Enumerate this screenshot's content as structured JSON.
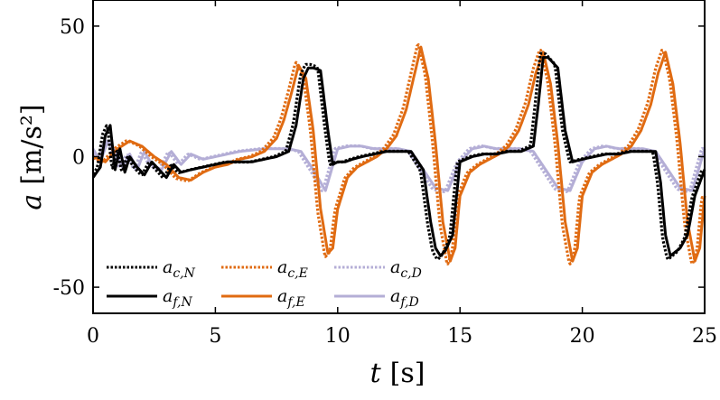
{
  "chart_data": {
    "type": "line",
    "xlabel_var": "t",
    "xlabel_unit": "[s]",
    "ylabel_var": "a",
    "ylabel_unit": "[m/s²]",
    "xlim": [
      0,
      25
    ],
    "ylim": [
      -60,
      60
    ],
    "xticks": [
      0,
      5,
      10,
      15,
      20,
      25
    ],
    "yticks": [
      -50,
      0,
      50
    ],
    "ytick_labels": [
      "-50",
      "0",
      "50"
    ],
    "colors": {
      "N": "#000000",
      "E": "#e06b12",
      "D": "#b4aed6"
    },
    "legend_position": "bottom-left",
    "series": [
      {
        "name": "a_c,N",
        "base": "a",
        "sub": "c,N",
        "axis": "N",
        "kind": "dotted"
      },
      {
        "name": "a_c,E",
        "base": "a",
        "sub": "c,E",
        "axis": "E",
        "kind": "dotted"
      },
      {
        "name": "a_c,D",
        "base": "a",
        "sub": "c,D",
        "axis": "D",
        "kind": "dotted"
      },
      {
        "name": "a_f,N",
        "base": "a",
        "sub": "f,N",
        "axis": "N",
        "kind": "solid"
      },
      {
        "name": "a_f,E",
        "base": "a",
        "sub": "f,E",
        "axis": "E",
        "kind": "solid"
      },
      {
        "name": "a_f,D",
        "base": "a",
        "sub": "f,D",
        "axis": "D",
        "kind": "solid"
      }
    ],
    "traces": {
      "E": {
        "t": [
          0,
          0.5,
          1.0,
          1.5,
          2.0,
          2.5,
          3.0,
          3.5,
          4.0,
          4.5,
          5.0,
          5.5,
          6.0,
          6.5,
          7.0,
          7.5,
          7.8,
          8.1,
          8.4,
          8.7,
          9.0,
          9.3,
          9.6,
          9.8,
          10.0,
          10.4,
          10.8,
          11.2,
          11.6,
          12.0,
          12.4,
          12.8,
          13.1,
          13.4,
          13.7,
          14.0,
          14.3,
          14.6,
          14.8,
          15.0,
          15.4,
          15.8,
          16.2,
          16.6,
          17.0,
          17.4,
          17.8,
          18.1,
          18.4,
          18.7,
          19.0,
          19.3,
          19.6,
          19.8,
          20.0,
          20.4,
          20.8,
          21.2,
          21.6,
          22.0,
          22.4,
          22.8,
          23.1,
          23.4,
          23.7,
          24.0,
          24.3,
          24.6,
          24.8,
          25.0
        ],
        "v": [
          0,
          -2,
          3,
          6,
          4,
          0,
          -3,
          -8,
          -9,
          -6,
          -4,
          -3,
          -1,
          0,
          2,
          7,
          14,
          24,
          35,
          30,
          10,
          -20,
          -37,
          -35,
          -20,
          -8,
          -4,
          -2,
          0,
          3,
          8,
          18,
          30,
          42,
          30,
          5,
          -25,
          -40,
          -35,
          -15,
          -6,
          -3,
          -1,
          1,
          4,
          10,
          20,
          32,
          40,
          28,
          5,
          -25,
          -40,
          -35,
          -15,
          -6,
          -3,
          -1,
          1,
          4,
          10,
          20,
          32,
          40,
          28,
          5,
          -25,
          -40,
          -35,
          -15
        ]
      },
      "N": {
        "t": [
          0,
          0.3,
          0.5,
          0.7,
          0.9,
          1.1,
          1.3,
          1.5,
          1.8,
          2.1,
          2.4,
          2.7,
          3.0,
          3.3,
          3.6,
          4.0,
          4.5,
          5.0,
          5.5,
          6.0,
          6.5,
          7.0,
          7.5,
          8.0,
          8.3,
          8.6,
          8.8,
          9.0,
          9.3,
          9.6,
          9.8,
          10.0,
          10.3,
          10.6,
          11.0,
          11.5,
          12.0,
          12.5,
          13.0,
          13.5,
          13.8,
          14.0,
          14.2,
          14.4,
          14.7,
          15.0,
          15.5,
          16.0,
          16.5,
          17.0,
          17.5,
          18.0,
          18.2,
          18.4,
          18.6,
          19.0,
          19.3,
          19.6,
          20.0,
          20.5,
          21.0,
          21.5,
          22.0,
          22.5,
          23.0,
          23.2,
          23.4,
          23.6,
          24.0,
          24.3,
          24.6,
          25.0
        ],
        "v": [
          -8,
          -4,
          8,
          12,
          -5,
          3,
          -6,
          0,
          -4,
          -7,
          -2,
          -5,
          -8,
          -3,
          -6,
          -5,
          -4,
          -3,
          -2,
          -2,
          -2,
          -1,
          0,
          2,
          12,
          30,
          34,
          34,
          33,
          10,
          -3,
          -2,
          -2,
          -1,
          0,
          1,
          2,
          2,
          2,
          -5,
          -25,
          -35,
          -38,
          -36,
          -30,
          -2,
          0,
          1,
          1,
          2,
          2,
          4,
          20,
          38,
          38,
          34,
          10,
          -2,
          -1,
          0,
          1,
          1,
          2,
          2,
          2,
          -10,
          -30,
          -38,
          -35,
          -30,
          -15,
          -5
        ]
      },
      "D": {
        "t": [
          0,
          0.3,
          0.6,
          0.9,
          1.2,
          1.5,
          1.8,
          2.1,
          2.4,
          2.8,
          3.2,
          3.6,
          4.0,
          4.5,
          5.0,
          5.5,
          6.0,
          7.0,
          8.0,
          8.5,
          9.0,
          9.5,
          10.0,
          10.5,
          11.0,
          11.5,
          12.0,
          12.5,
          13.0,
          13.5,
          14.0,
          14.5,
          15.0,
          15.5,
          16.0,
          16.5,
          17.0,
          17.5,
          18.0,
          18.5,
          19.0,
          19.5,
          20.0,
          20.5,
          21.0,
          21.5,
          22.0,
          22.5,
          23.0,
          23.5,
          24.0,
          24.5,
          25.0
        ],
        "v": [
          3,
          -2,
          6,
          2,
          -4,
          1,
          -5,
          2,
          -3,
          -5,
          2,
          -3,
          1,
          -1,
          0,
          1,
          2,
          3,
          3,
          2,
          -5,
          -13,
          3,
          4,
          4,
          3,
          3,
          3,
          2,
          -5,
          -12,
          -13,
          -2,
          3,
          4,
          3,
          3,
          3,
          2,
          -5,
          -12,
          -13,
          -2,
          3,
          4,
          3,
          3,
          3,
          2,
          -5,
          -12,
          -13,
          3
        ]
      }
    }
  }
}
